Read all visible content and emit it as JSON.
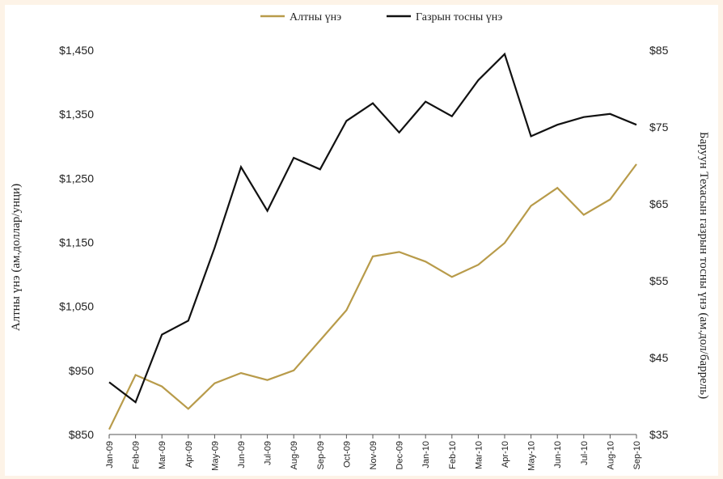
{
  "chart_data": {
    "type": "line",
    "title": "",
    "categories": [
      "Jan-09",
      "Feb-09",
      "Mar-09",
      "Apr-09",
      "May-09",
      "Jun-09",
      "Jul-09",
      "Aug-09",
      "Sep-09",
      "Oct-09",
      "Nov-09",
      "Dec-09",
      "Jan-10",
      "Feb-10",
      "Mar-10",
      "Apr-10",
      "May-10",
      "Jun-10",
      "Jul-10",
      "Aug-10",
      "Sep-10"
    ],
    "series": [
      {
        "name": "Алтны үнэ",
        "axis": "left",
        "color": "#b89b4a",
        "values": [
          858,
          943,
          925,
          890,
          930,
          946,
          935,
          950,
          997,
          1044,
          1128,
          1135,
          1120,
          1096,
          1115,
          1149,
          1207,
          1235,
          1193,
          1217,
          1272
        ]
      },
      {
        "name": "Газрын тосны үнэ",
        "axis": "right",
        "color": "#111111",
        "values": [
          41.8,
          39.2,
          48.0,
          49.8,
          59.3,
          69.8,
          64.1,
          71.0,
          69.5,
          75.8,
          78.1,
          74.3,
          78.3,
          76.4,
          81.1,
          84.5,
          73.8,
          75.3,
          76.3,
          76.7,
          75.3
        ]
      }
    ],
    "ylabel_left": "Алтны үнэ (ам.доллар/унци)",
    "ylabel_right": "Баруун Техасын газрын тосны үнэ (ам.дол/баррель)",
    "ylim_left": [
      850,
      1450
    ],
    "ylim_right": [
      35,
      85
    ],
    "yticks_left": [
      "$850",
      "$950",
      "$1,050",
      "$1,150",
      "$1,250",
      "$1,350",
      "$1,450"
    ],
    "yticks_right": [
      "$35",
      "$45",
      "$55",
      "$65",
      "$75",
      "$85"
    ],
    "legend_position": "top",
    "grid": false
  }
}
